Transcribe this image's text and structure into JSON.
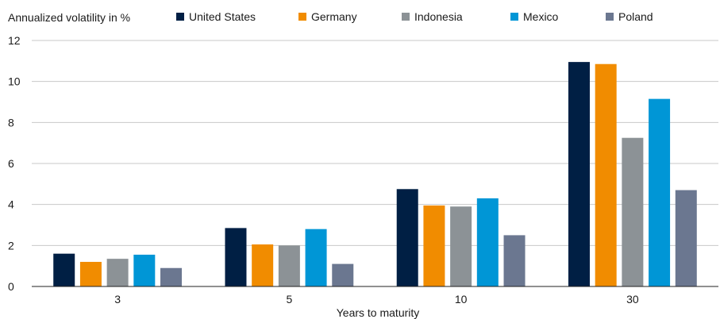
{
  "chart_data": {
    "type": "bar",
    "ylabel": "Annualized volatility in %",
    "xlabel": "Years to maturity",
    "categories": [
      "3",
      "5",
      "10",
      "30"
    ],
    "ylim": [
      0,
      12
    ],
    "yticks": [
      0,
      2,
      4,
      6,
      8,
      10,
      12
    ],
    "grid": true,
    "legend_position": "top",
    "series": [
      {
        "name": "United States",
        "color": "#001f44",
        "values": [
          1.6,
          2.85,
          4.75,
          10.95
        ]
      },
      {
        "name": "Germany",
        "color": "#f18c00",
        "values": [
          1.2,
          2.05,
          3.95,
          10.85
        ]
      },
      {
        "name": "Indonesia",
        "color": "#8c9296",
        "values": [
          1.35,
          2.0,
          3.9,
          7.25
        ]
      },
      {
        "name": "Mexico",
        "color": "#0096d6",
        "values": [
          1.55,
          2.8,
          4.3,
          9.15
        ]
      },
      {
        "name": "Poland",
        "color": "#6b7790",
        "values": [
          0.9,
          1.1,
          2.5,
          4.7
        ]
      }
    ]
  }
}
